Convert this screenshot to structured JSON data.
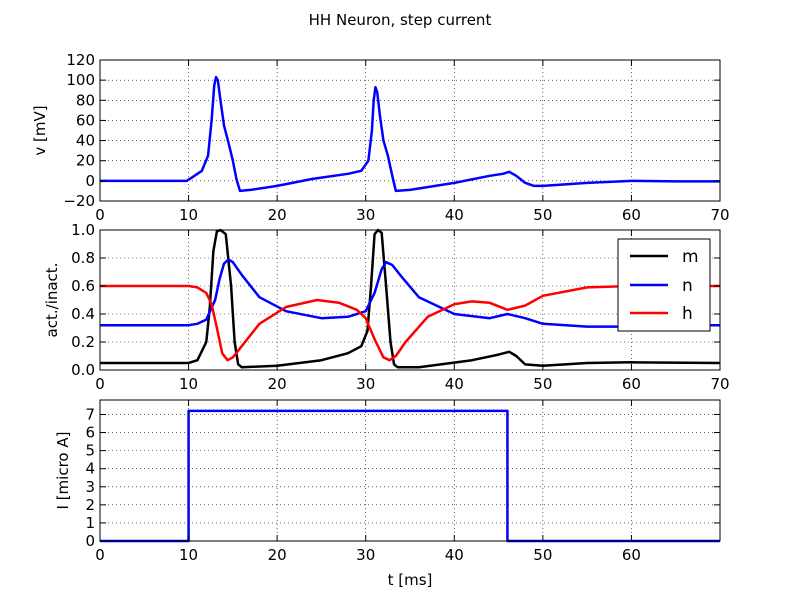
{
  "figure": {
    "title": "HH Neuron, step current"
  },
  "chart_data": [
    {
      "type": "line",
      "id": "voltage",
      "xlim": [
        0,
        70
      ],
      "ylim": [
        -20,
        120
      ],
      "xticks": [
        0,
        10,
        20,
        30,
        40,
        50,
        60,
        70
      ],
      "yticks": [
        -20,
        0,
        20,
        40,
        60,
        80,
        100,
        120
      ],
      "xlabel": "",
      "ylabel": "v [mV]",
      "grid": true,
      "series": [
        {
          "name": "",
          "color": "#0000ff",
          "x": [
            0,
            9.8,
            10.5,
            11.5,
            12.2,
            12.6,
            12.9,
            13.1,
            13.3,
            13.6,
            14.0,
            14.5,
            15.0,
            15.4,
            15.8,
            17,
            20,
            24,
            28,
            29.5,
            30.3,
            30.7,
            30.9,
            31.1,
            31.3,
            31.6,
            32.0,
            32.5,
            33.0,
            33.4,
            35,
            40,
            44,
            45.5,
            46.2,
            47,
            48,
            49,
            50,
            55,
            60,
            65,
            70
          ],
          "y": [
            0,
            0,
            4,
            10,
            25,
            60,
            95,
            103,
            100,
            80,
            55,
            38,
            20,
            2,
            -10,
            -9,
            -5,
            2,
            7,
            10,
            20,
            50,
            80,
            93,
            88,
            65,
            40,
            25,
            5,
            -10,
            -9,
            -2,
            5,
            7,
            9,
            5,
            -2,
            -5,
            -5,
            -2,
            0,
            -0.5,
            -0.5
          ]
        }
      ]
    },
    {
      "type": "line",
      "id": "gating",
      "xlim": [
        0,
        70
      ],
      "ylim": [
        0,
        1
      ],
      "xticks": [
        0,
        10,
        20,
        30,
        40,
        50,
        60,
        70
      ],
      "yticks": [
        0.0,
        0.2,
        0.4,
        0.6,
        0.8,
        1.0
      ],
      "xlabel": "",
      "ylabel": "act./inact.",
      "grid": true,
      "legend": "top-right",
      "series": [
        {
          "name": "m",
          "color": "#000000",
          "x": [
            0,
            10,
            11,
            12,
            12.4,
            12.8,
            13.2,
            13.6,
            14.2,
            14.8,
            15.2,
            15.6,
            16,
            20,
            25,
            28,
            29.5,
            30.2,
            30.6,
            31.0,
            31.4,
            31.8,
            32.3,
            32.8,
            33.2,
            33.6,
            36,
            42,
            45,
            46.2,
            47,
            48,
            50,
            55,
            60,
            70
          ],
          "y": [
            0.05,
            0.05,
            0.07,
            0.2,
            0.45,
            0.85,
            0.99,
            1.0,
            0.97,
            0.6,
            0.2,
            0.04,
            0.02,
            0.03,
            0.07,
            0.12,
            0.17,
            0.28,
            0.6,
            0.97,
            1.0,
            0.98,
            0.6,
            0.2,
            0.04,
            0.02,
            0.02,
            0.07,
            0.11,
            0.13,
            0.1,
            0.04,
            0.03,
            0.05,
            0.055,
            0.05
          ]
        },
        {
          "name": "n",
          "color": "#0000ff",
          "x": [
            0,
            10,
            11,
            12,
            13,
            13.5,
            14,
            14.5,
            15,
            16,
            18,
            21,
            25,
            28,
            30,
            31,
            31.8,
            32.3,
            33,
            34,
            36,
            40,
            44,
            46,
            48,
            50,
            55,
            60,
            65,
            70
          ],
          "y": [
            0.32,
            0.32,
            0.33,
            0.36,
            0.5,
            0.65,
            0.76,
            0.79,
            0.77,
            0.68,
            0.52,
            0.42,
            0.37,
            0.38,
            0.42,
            0.55,
            0.72,
            0.77,
            0.75,
            0.67,
            0.52,
            0.4,
            0.37,
            0.4,
            0.37,
            0.33,
            0.31,
            0.31,
            0.32,
            0.32
          ]
        },
        {
          "name": "h",
          "color": "#ff0000",
          "x": [
            0,
            10,
            11,
            12,
            12.6,
            13.2,
            13.8,
            14.4,
            15,
            16,
            18,
            21,
            24.5,
            27,
            29,
            30,
            31,
            32,
            32.7,
            33.4,
            34.5,
            37,
            40,
            42,
            44,
            46,
            48,
            50,
            55,
            60,
            65,
            70
          ],
          "y": [
            0.6,
            0.6,
            0.59,
            0.55,
            0.47,
            0.3,
            0.12,
            0.07,
            0.09,
            0.17,
            0.33,
            0.45,
            0.5,
            0.48,
            0.43,
            0.37,
            0.22,
            0.09,
            0.07,
            0.1,
            0.2,
            0.38,
            0.47,
            0.49,
            0.48,
            0.43,
            0.46,
            0.53,
            0.59,
            0.6,
            0.6,
            0.6
          ]
        }
      ]
    },
    {
      "type": "line",
      "id": "current",
      "xlim": [
        0,
        70
      ],
      "ylim": [
        0,
        7.8
      ],
      "xticks": [
        0,
        10,
        20,
        30,
        40,
        50,
        60
      ],
      "yticks": [
        0,
        1,
        2,
        3,
        4,
        5,
        6,
        7
      ],
      "xlabel": "t [ms]",
      "ylabel": "I [micro A]",
      "grid": true,
      "series": [
        {
          "name": "",
          "color": "#0000ff",
          "x": [
            0,
            10,
            10,
            46,
            46,
            70
          ],
          "y": [
            0,
            0,
            7.2,
            7.2,
            0,
            0
          ]
        }
      ]
    }
  ]
}
